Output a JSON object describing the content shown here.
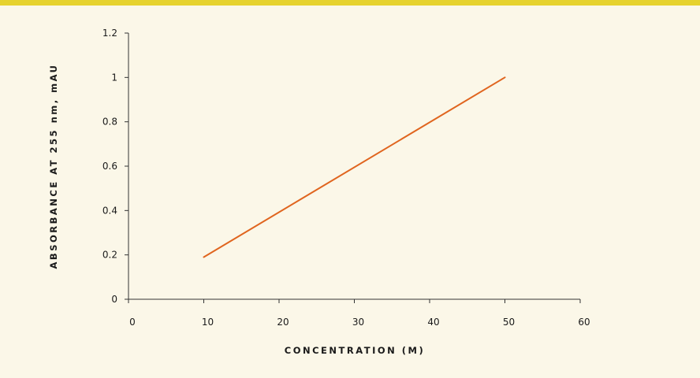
{
  "colors": {
    "background": "#fbf7e8",
    "top_bar": "#e6d22e",
    "axis": "#333333",
    "series_line": "#e0651f"
  },
  "chart_data": {
    "type": "line",
    "title": "",
    "xlabel": "CONCENTRATION (M)",
    "ylabel": "ABSORBANCE AT 255 nm, mAU",
    "xlim": [
      0,
      60
    ],
    "ylim": [
      0,
      1.2
    ],
    "x_ticks": [
      0,
      10,
      20,
      30,
      40,
      50,
      60
    ],
    "x_tick_labels": [
      "0",
      "10",
      "20",
      "30",
      "40",
      "50",
      "60"
    ],
    "y_ticks": [
      0,
      0.2,
      0.4,
      0.6,
      0.8,
      1,
      1.2
    ],
    "y_tick_labels": [
      "0",
      "0.2",
      "0.4",
      "0.6",
      "0.8",
      "1",
      "1.2"
    ],
    "grid": false,
    "legend": "none",
    "series": [
      {
        "x": [
          10,
          50
        ],
        "values": [
          0.19,
          1.0
        ]
      }
    ]
  }
}
